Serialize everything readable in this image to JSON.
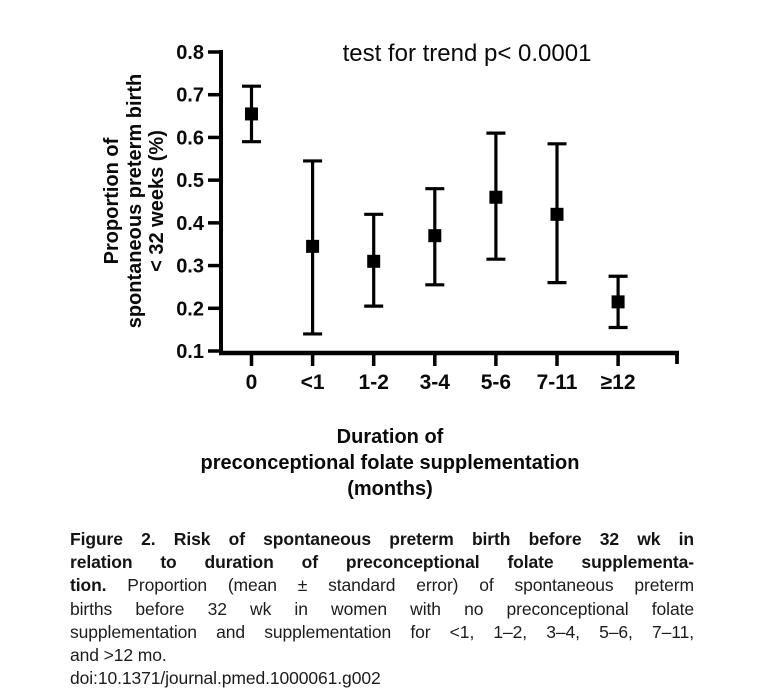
{
  "chart_data": {
    "type": "scatter",
    "subtype": "point-with-error-bars",
    "title": "",
    "annotation": "test for trend p< 0.0001",
    "grid": false,
    "legend": "none",
    "color": "#000000",
    "marker": "filled-square",
    "y_axis": {
      "title_lines": [
        "Proportion of",
        "spontaneous preterm birth",
        "< 32 weeks (%)"
      ],
      "ticks": [
        0.8,
        0.7,
        0.6,
        0.5,
        0.4,
        0.3,
        0.2,
        0.1
      ],
      "tick_labels": [
        "0.8",
        "0.7",
        "0.6",
        "0.5",
        "0.4",
        "0.3",
        "0.2",
        "0.1"
      ],
      "ylim": [
        0.1,
        0.8
      ]
    },
    "x_axis": {
      "title_lines": [
        "Duration of",
        "preconceptional folate supplementation",
        "(months)"
      ],
      "categories": [
        "0",
        "<1",
        "1-2",
        "3-4",
        "5-6",
        "7-11",
        "≥12"
      ]
    },
    "series": [
      {
        "name": "proportion of spontaneous preterm birth (mean ± standard error)",
        "points": [
          {
            "category": "0",
            "mean": 0.655,
            "lower": 0.59,
            "upper": 0.72
          },
          {
            "category": "<1",
            "mean": 0.345,
            "lower": 0.14,
            "upper": 0.545
          },
          {
            "category": "1-2",
            "mean": 0.31,
            "lower": 0.205,
            "upper": 0.42
          },
          {
            "category": "3-4",
            "mean": 0.37,
            "lower": 0.255,
            "upper": 0.48
          },
          {
            "category": "5-6",
            "mean": 0.46,
            "lower": 0.315,
            "upper": 0.61
          },
          {
            "category": "7-11",
            "mean": 0.42,
            "lower": 0.26,
            "upper": 0.585
          },
          {
            "category": "≥12",
            "mean": 0.215,
            "lower": 0.155,
            "upper": 0.275
          }
        ]
      }
    ]
  },
  "caption": {
    "lines": [
      {
        "bold": "Figure 2. Risk of spontaneous preterm birth before 32 wk in",
        "text": "",
        "justify": true,
        "name": "caption-line"
      },
      {
        "bold": "relation to duration of preconceptional folate supplementa-",
        "text": "",
        "justify": true,
        "name": "caption-line"
      },
      {
        "bold": "tion.",
        "text": " Proportion (mean ± standard error) of spontaneous preterm",
        "justify": true,
        "name": "caption-line"
      },
      {
        "bold": "",
        "text": "births before 32 wk in women with no preconceptional folate",
        "justify": true,
        "name": "caption-line"
      },
      {
        "bold": "",
        "text": "supplementation and supplementation for <1, 1–2, 3–4, 5–6, 7–11,",
        "justify": true,
        "name": "caption-line"
      },
      {
        "bold": "",
        "text": "and >12 mo.",
        "justify": false,
        "name": "caption-line"
      },
      {
        "bold": "",
        "text": "doi:10.1371/journal.pmed.1000061.g002",
        "justify": false,
        "name": "doi-line"
      }
    ]
  }
}
